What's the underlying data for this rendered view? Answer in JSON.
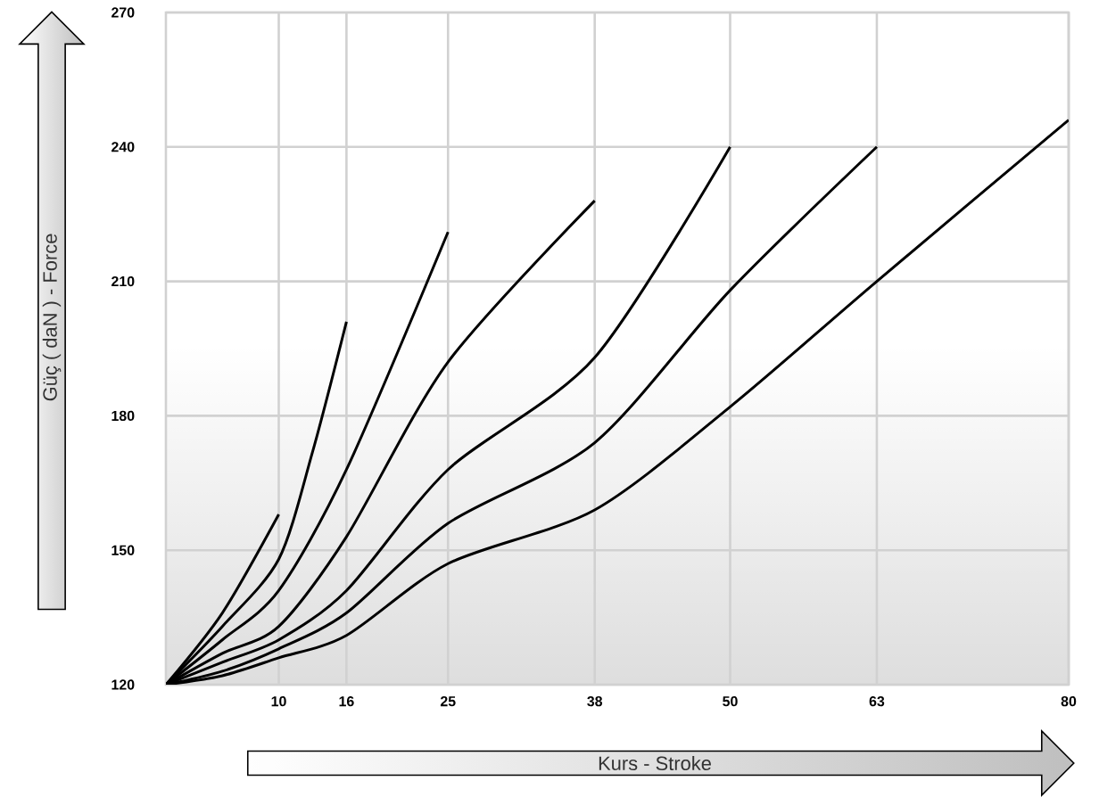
{
  "chart_data": {
    "type": "line",
    "xlabel": "Kurs - Stroke",
    "ylabel": "Güç ( daN ) - Force",
    "xlim": [
      0,
      80
    ],
    "ylim": [
      120,
      270
    ],
    "xticks": [
      10,
      16,
      25,
      38,
      50,
      63,
      80
    ],
    "yticks": [
      120,
      150,
      180,
      210,
      240,
      270
    ],
    "grid": true,
    "series": [
      {
        "color": "#000000",
        "x": [
          0,
          5,
          10
        ],
        "values": [
          120,
          136,
          158
        ]
      },
      {
        "color": "#000000",
        "x": [
          0,
          5,
          10,
          13,
          16
        ],
        "values": [
          120,
          133,
          148,
          172,
          201
        ]
      },
      {
        "color": "#000000",
        "x": [
          0,
          5,
          10,
          16,
          25
        ],
        "values": [
          120,
          130,
          141,
          168,
          221
        ]
      },
      {
        "color": "#000000",
        "x": [
          0,
          5,
          10,
          16,
          25,
          38
        ],
        "values": [
          120,
          127,
          133,
          153,
          192,
          228
        ]
      },
      {
        "color": "#000000",
        "x": [
          0,
          5,
          10,
          16,
          25,
          38,
          50
        ],
        "values": [
          120,
          125,
          130,
          141,
          168,
          193,
          240
        ]
      },
      {
        "color": "#000000",
        "x": [
          0,
          5,
          10,
          16,
          25,
          38,
          50,
          63
        ],
        "values": [
          120,
          123,
          128,
          136,
          156,
          174,
          208,
          240
        ]
      },
      {
        "color": "#000000",
        "x": [
          0,
          5,
          10,
          16,
          25,
          38,
          50,
          63,
          80
        ],
        "values": [
          120,
          122,
          126,
          131,
          147,
          159,
          182,
          210,
          246
        ]
      }
    ]
  }
}
